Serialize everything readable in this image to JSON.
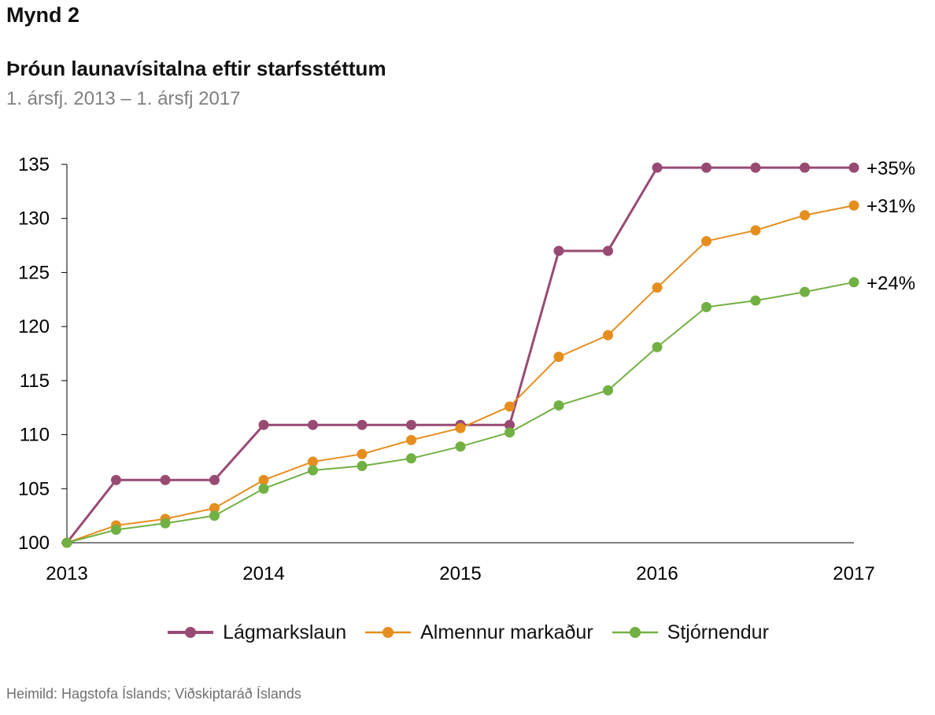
{
  "figure": {
    "label": "Mynd 2",
    "title": "Þróun launavísitalna eftir starfsstéttum",
    "subtitle": "1. ársfj. 2013 – 1. ársfj 2017",
    "source": "Heimild: Hagstofa Íslands; Viðskiptaráð Íslands"
  },
  "chart_data": {
    "type": "line",
    "title": "Þróun launavísitalna eftir starfsstéttum",
    "subtitle": "1. ársfj. 2013 – 1. ársfj 2017",
    "xlabel": "",
    "ylabel": "",
    "x": [
      2013.0,
      2013.25,
      2013.5,
      2013.75,
      2014.0,
      2014.25,
      2014.5,
      2014.75,
      2015.0,
      2015.25,
      2015.5,
      2015.75,
      2016.0,
      2016.25,
      2016.5,
      2016.75,
      2017.0
    ],
    "xticks": [
      2013,
      2014,
      2015,
      2016,
      2017
    ],
    "xtick_labels": [
      "2013",
      "2014",
      "2015",
      "2016",
      "2017"
    ],
    "xlim": [
      2013,
      2017
    ],
    "yticks": [
      100,
      105,
      110,
      115,
      120,
      125,
      130,
      135
    ],
    "ytick_labels": [
      "100",
      "105",
      "110",
      "115",
      "120",
      "125",
      "130",
      "135"
    ],
    "ylim": [
      100,
      135
    ],
    "grid": false,
    "legend_position": "bottom",
    "series": [
      {
        "name": "Lágmarkslaun",
        "color": "#994a73",
        "end_label": "+35%",
        "values": [
          100,
          105.8,
          105.8,
          105.8,
          110.9,
          110.9,
          110.9,
          110.9,
          110.9,
          110.9,
          127.0,
          127.0,
          134.7,
          134.7,
          134.7,
          134.7,
          134.7
        ]
      },
      {
        "name": "Almennur markaður",
        "color": "#e58e1f",
        "end_label": "+31%",
        "values": [
          100,
          101.6,
          102.2,
          103.2,
          105.8,
          107.5,
          108.2,
          109.5,
          110.6,
          112.6,
          117.2,
          119.2,
          123.6,
          127.9,
          128.9,
          130.3,
          131.2
        ]
      },
      {
        "name": "Stjórnendur",
        "color": "#72b043",
        "end_label": "+24%",
        "values": [
          100,
          101.2,
          101.8,
          102.5,
          105.0,
          106.7,
          107.1,
          107.8,
          108.9,
          110.2,
          112.7,
          114.1,
          118.1,
          121.8,
          122.4,
          123.2,
          124.1
        ]
      }
    ]
  }
}
